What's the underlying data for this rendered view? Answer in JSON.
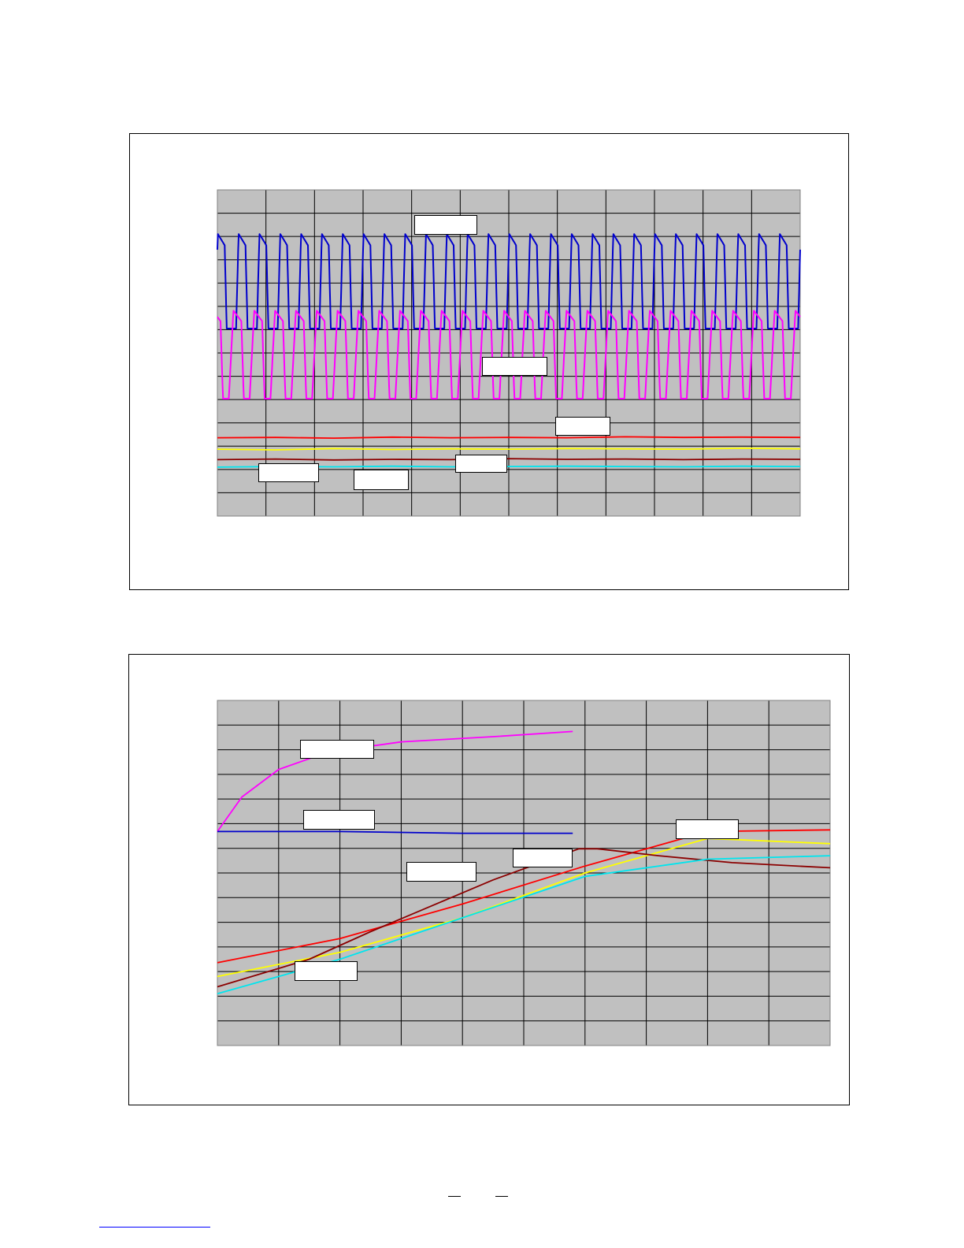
{
  "page": {
    "footer": {
      "link_color": "#0000ff"
    }
  },
  "chart_data": [
    {
      "type": "line",
      "title": "",
      "xlabel": "",
      "ylabel": "",
      "xlim": [
        0,
        100
      ],
      "ylim": [
        0,
        100
      ],
      "x_divisions": 12,
      "y_divisions": 14,
      "grid": true,
      "legend": "none",
      "series": [
        {
          "color": "#0000cc",
          "kind": "pulse",
          "cycles": 28,
          "start": 0.1,
          "low": 57.5,
          "high": 86.5,
          "ramp": 0.12,
          "shoulder": 0.45,
          "fall": 0.55
        },
        {
          "color": "#ff00ff",
          "kind": "pulse",
          "cycles": 28,
          "start": 0.45,
          "low": 36,
          "high": 63,
          "ramp": 0.22,
          "shoulder": 0.6,
          "fall": 0.72
        },
        {
          "color": "#ff0000",
          "kind": "flat",
          "values": [
            24,
            24.1,
            23.9,
            24.2,
            24,
            24.1,
            24,
            24.3,
            24.1,
            24.2,
            24.1
          ]
        },
        {
          "color": "#ffff00",
          "kind": "flat",
          "values": [
            20.5,
            20.3,
            20.7,
            20.4,
            20.6,
            20.5,
            20.7,
            20.6,
            20.5,
            20.8,
            20.6
          ]
        },
        {
          "color": "#8b0000",
          "kind": "flat",
          "values": [
            17.3,
            17.5,
            17.2,
            17.4,
            17.3,
            17.6,
            17.4,
            17.5,
            17.3,
            17.5,
            17.4
          ]
        },
        {
          "color": "#00e5ee",
          "kind": "flat",
          "values": [
            15,
            15.2,
            15.1,
            15.3,
            15.1,
            15.2,
            15.3,
            15.2,
            15.1,
            15.3,
            15.2
          ]
        }
      ]
    },
    {
      "type": "line",
      "title": "",
      "xlabel": "",
      "ylabel": "",
      "xlim": [
        0,
        100
      ],
      "ylim": [
        0,
        100
      ],
      "x_divisions": 10,
      "y_divisions": 14,
      "grid": true,
      "legend": "none",
      "series": [
        {
          "color": "#ff0000",
          "points": [
            [
              0,
              24
            ],
            [
              20,
              31
            ],
            [
              40,
              41
            ],
            [
              60,
              52
            ],
            [
              80,
              62
            ],
            [
              100,
              62.5
            ]
          ]
        },
        {
          "color": "#ffff00",
          "points": [
            [
              0,
              20
            ],
            [
              20,
              27
            ],
            [
              40,
              37
            ],
            [
              60,
              50
            ],
            [
              80,
              60
            ],
            [
              100,
              58.5
            ]
          ]
        },
        {
          "color": "#8b0000",
          "points": [
            [
              0,
              17
            ],
            [
              15,
              25
            ],
            [
              25,
              33
            ],
            [
              45,
              48
            ],
            [
              59,
              57
            ],
            [
              62,
              57
            ],
            [
              72,
              55
            ],
            [
              84,
              53
            ],
            [
              100,
              51.5
            ]
          ]
        },
        {
          "color": "#00e5ee",
          "points": [
            [
              0,
              15
            ],
            [
              20,
              25
            ],
            [
              40,
              37
            ],
            [
              60,
              49
            ],
            [
              80,
              54
            ],
            [
              100,
              55
            ]
          ]
        },
        {
          "color": "#ff00ff",
          "points": [
            [
              0,
              62
            ],
            [
              4,
              72
            ],
            [
              10,
              80
            ],
            [
              18,
              85
            ],
            [
              30,
              88
            ],
            [
              45,
              89.5
            ],
            [
              58,
              91
            ]
          ]
        },
        {
          "color": "#0000cc",
          "points": [
            [
              0,
              62
            ],
            [
              20,
              62
            ],
            [
              40,
              61.5
            ],
            [
              58,
              61.5
            ]
          ]
        }
      ]
    }
  ]
}
